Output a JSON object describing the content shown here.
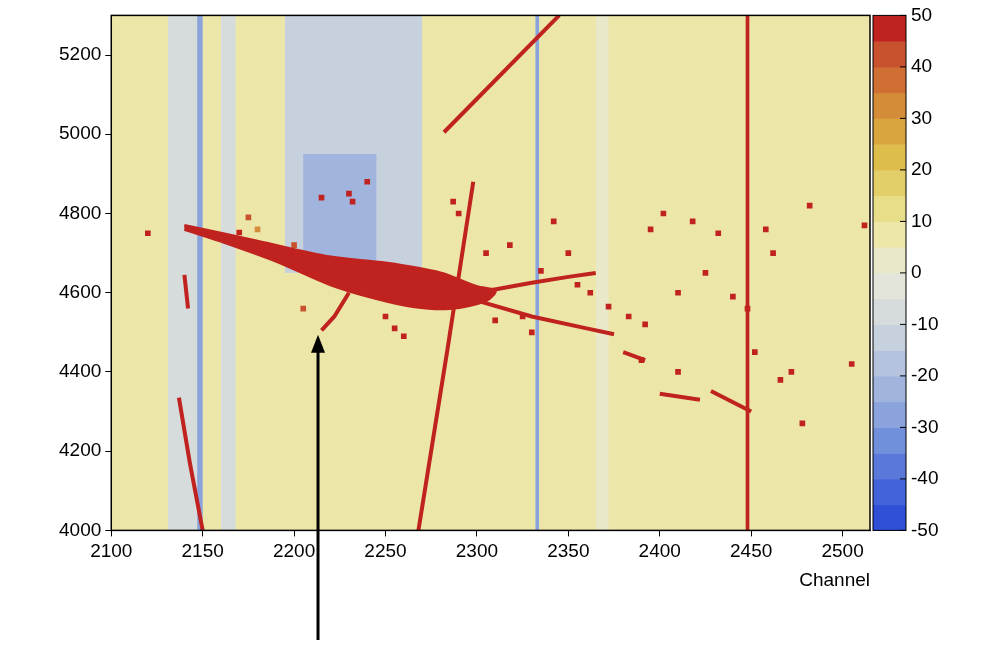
{
  "chart_data": {
    "type": "heatmap",
    "xlabel": "Channel",
    "xlim": [
      2100,
      2515
    ],
    "xticks": [
      2100,
      2150,
      2200,
      2250,
      2300,
      2350,
      2400,
      2450,
      2500
    ],
    "ylim": [
      4000,
      5300
    ],
    "yticks": [
      4000,
      4200,
      4400,
      4600,
      4800,
      5000,
      5200
    ],
    "grid": false,
    "colorbar": {
      "range": [
        -50,
        50
      ],
      "ticks": [
        -50,
        -40,
        -30,
        -20,
        -10,
        0,
        10,
        20,
        30,
        40,
        50
      ]
    },
    "baseline": 7,
    "regions": [
      {
        "x": [
          2131,
          2147
        ],
        "y": [
          4000,
          5300
        ],
        "value": -8
      },
      {
        "x": [
          2147,
          2150
        ],
        "y": [
          4000,
          5300
        ],
        "value": -30
      },
      {
        "x": [
          2160,
          2168
        ],
        "y": [
          4000,
          5300
        ],
        "value": -6
      },
      {
        "x": [
          2195,
          2270
        ],
        "y": [
          4650,
          5300
        ],
        "value": -15
      },
      {
        "x": [
          2205,
          2245
        ],
        "y": [
          4650,
          4950
        ],
        "value": -22
      },
      {
        "x": [
          2332,
          2334
        ],
        "y": [
          4000,
          5300
        ],
        "value": -28
      },
      {
        "x": [
          2365,
          2372
        ],
        "y": [
          4000,
          5300
        ],
        "value": 2
      },
      {
        "x": [
          2447,
          2449
        ],
        "y": [
          4000,
          5300
        ],
        "value": 45
      }
    ],
    "blobs": [
      {
        "value": 50,
        "outline": [
          [
            2140,
            4770
          ],
          [
            2180,
            4730
          ],
          [
            2220,
            4690
          ],
          [
            2250,
            4675
          ],
          [
            2280,
            4650
          ],
          [
            2300,
            4615
          ],
          [
            2310,
            4605
          ],
          [
            2305,
            4580
          ],
          [
            2285,
            4560
          ],
          [
            2265,
            4565
          ],
          [
            2245,
            4585
          ],
          [
            2220,
            4620
          ],
          [
            2190,
            4680
          ],
          [
            2160,
            4730
          ],
          [
            2140,
            4760
          ]
        ]
      }
    ],
    "tracks": [
      {
        "value": 50,
        "points": [
          [
            2137,
            4335
          ],
          [
            2143,
            4170
          ],
          [
            2150,
            4000
          ]
        ]
      },
      {
        "value": 50,
        "points": [
          [
            2140,
            4645
          ],
          [
            2142,
            4560
          ]
        ]
      },
      {
        "value": 50,
        "points": [
          [
            2268,
            4000
          ],
          [
            2284,
            4460
          ],
          [
            2298,
            4880
          ]
        ]
      },
      {
        "value": 50,
        "points": [
          [
            2282,
            5005
          ],
          [
            2345,
            5300
          ]
        ]
      },
      {
        "value": 50,
        "points": [
          [
            2300,
            4580
          ],
          [
            2330,
            4540
          ],
          [
            2360,
            4510
          ],
          [
            2375,
            4495
          ]
        ]
      },
      {
        "value": 50,
        "points": [
          [
            2300,
            4600
          ],
          [
            2330,
            4625
          ],
          [
            2350,
            4640
          ],
          [
            2365,
            4650
          ]
        ]
      },
      {
        "value": 50,
        "points": [
          [
            2230,
            4600
          ],
          [
            2222,
            4540
          ],
          [
            2215,
            4505
          ]
        ]
      },
      {
        "value": 50,
        "points": [
          [
            2380,
            4450
          ],
          [
            2392,
            4430
          ]
        ]
      },
      {
        "value": 50,
        "points": [
          [
            2400,
            4345
          ],
          [
            2422,
            4330
          ]
        ]
      },
      {
        "value": 50,
        "points": [
          [
            2428,
            4352
          ],
          [
            2450,
            4300
          ]
        ]
      }
    ],
    "hits": [
      [
        2120,
        4750,
        50
      ],
      [
        2170,
        4752,
        50
      ],
      [
        2175,
        4790,
        40
      ],
      [
        2230,
        4850,
        50
      ],
      [
        2232,
        4830,
        50
      ],
      [
        2240,
        4880,
        45
      ],
      [
        2287,
        4830,
        50
      ],
      [
        2290,
        4800,
        50
      ],
      [
        2305,
        4700,
        50
      ],
      [
        2318,
        4720,
        50
      ],
      [
        2335,
        4655,
        50
      ],
      [
        2342,
        4780,
        50
      ],
      [
        2350,
        4700,
        50
      ],
      [
        2355,
        4620,
        50
      ],
      [
        2362,
        4600,
        50
      ],
      [
        2372,
        4565,
        50
      ],
      [
        2383,
        4540,
        50
      ],
      [
        2392,
        4520,
        50
      ],
      [
        2395,
        4760,
        50
      ],
      [
        2402,
        4800,
        50
      ],
      [
        2410,
        4600,
        50
      ],
      [
        2418,
        4780,
        50
      ],
      [
        2425,
        4650,
        50
      ],
      [
        2432,
        4750,
        50
      ],
      [
        2440,
        4590,
        50
      ],
      [
        2448,
        4560,
        50
      ],
      [
        2452,
        4450,
        50
      ],
      [
        2458,
        4760,
        50
      ],
      [
        2462,
        4700,
        50
      ],
      [
        2466,
        4380,
        50
      ],
      [
        2472,
        4400,
        50
      ],
      [
        2478,
        4270,
        50
      ],
      [
        2482,
        4820,
        50
      ],
      [
        2505,
        4420,
        50
      ],
      [
        2512,
        4770,
        50
      ],
      [
        2390,
        4430,
        50
      ],
      [
        2410,
        4400,
        50
      ],
      [
        2325,
        4540,
        50
      ],
      [
        2330,
        4500,
        50
      ],
      [
        2310,
        4530,
        50
      ],
      [
        2250,
        4540,
        50
      ],
      [
        2255,
        4510,
        50
      ],
      [
        2260,
        4490,
        50
      ],
      [
        2205,
        4560,
        40
      ],
      [
        2215,
        4840,
        50
      ],
      [
        2200,
        4720,
        40
      ],
      [
        2180,
        4760,
        30
      ]
    ]
  }
}
